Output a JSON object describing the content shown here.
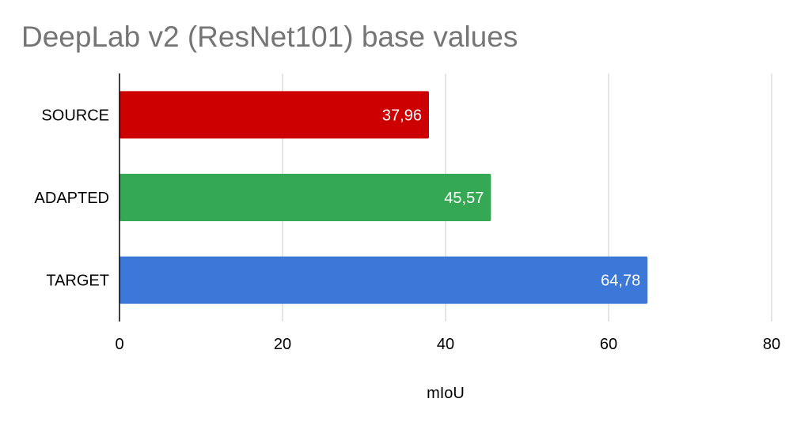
{
  "chart_data": {
    "type": "bar",
    "orientation": "horizontal",
    "title": "DeepLab v2 (ResNet101) base values",
    "xlabel": "mIoU",
    "ylabel": "",
    "categories": [
      "SOURCE",
      "ADAPTED",
      "TARGET"
    ],
    "values": [
      37.96,
      45.57,
      64.78
    ],
    "data_labels": [
      "37,96",
      "45,57",
      "64,78"
    ],
    "colors": [
      "#cc0000",
      "#34a853",
      "#3c78d8"
    ],
    "xlim": [
      0,
      80
    ],
    "xticks": [
      0,
      20,
      40,
      60,
      80
    ],
    "xtick_labels": [
      "0",
      "20",
      "40",
      "60",
      "80"
    ],
    "grid": "vertical",
    "legend": "none"
  }
}
